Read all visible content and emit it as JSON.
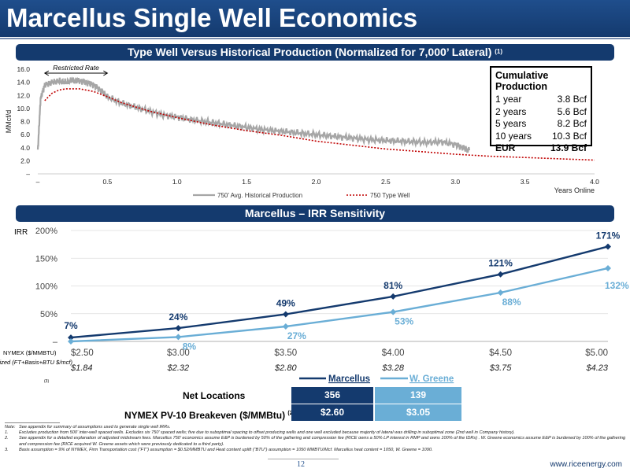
{
  "page": {
    "title": "Marcellus Single Well Economics",
    "section1_title": "Type Well Versus Historical Production (Normalized for 7,000’ Lateral)",
    "section1_sup": "(1)",
    "section2_title": "Marcellus – IRR Sensitivity",
    "page_number": "12",
    "website": "www.riceenergy.com"
  },
  "cumulative_box": {
    "title": "Cumulative Production",
    "rows": [
      {
        "label": "1 year",
        "value": "3.8 Bcf",
        "bold": false
      },
      {
        "label": "2 years",
        "value": "5.6 Bcf",
        "bold": false
      },
      {
        "label": "5 years",
        "value": "8.2 Bcf",
        "bold": false
      },
      {
        "label": "10 years",
        "value": "10.3 Bcf",
        "bold": false
      },
      {
        "label": "EUR",
        "value": "13.9 Bcf",
        "bold": true
      }
    ]
  },
  "net_table": {
    "row1_label": "Net Locations",
    "row1_values": [
      "356",
      "139"
    ],
    "row2_label": "NYMEX PV-10 Breakeven ($/MMBtu)",
    "row2_sup": "(2)",
    "row2_values": [
      "$2.60",
      "$3.05"
    ],
    "colors": [
      "#143a6e",
      "#6aaed6"
    ]
  },
  "footnotes": [
    {
      "n": "Note:",
      "text": "See appendix for summary of assumptions used to generate single well IRRs."
    },
    {
      "n": "1.",
      "text": "Excludes production from 500’ inter-well spaced wells. Excludes six 750’ spaced wells; five due to suboptimal spacing to offset producing wells and one well excluded because majority of lateral was drilling in suboptimal zone (2nd well in Company history)."
    },
    {
      "n": "2.",
      "text": "See appendix for a detailed explanation of adjusted midstream fees. Marcellus 750’ economics assume E&P is burdened by 50% of the gathering and compression fee (RICE owns a 50% LP interest in RMP and owns 100% of the IDRs) . W. Greene economics assume E&P is burdened by 100% of the gathering and compression fee (RICE acquired W. Greene assets which were previously dedicated to a third party)."
    },
    {
      "n": "3.",
      "text": "Basis assumption = 9% of NYMEX, Firm Transportation cost (“FT”) assumption = $0.52/MMBTU and Heat content uplift (“BTU”) assumption = 1050 MMBTU/Mcf. Marcellus heat content = 1050, W. Greene = 1090."
    }
  ],
  "chart_data": [
    {
      "type": "line",
      "title": "",
      "ylabel": "MMcf/d",
      "xlabel": "Years Online",
      "xlim": [
        0,
        4.0
      ],
      "ylim": [
        0,
        16.0
      ],
      "x_ticks": [
        "–",
        "0.5",
        "1.0",
        "1.5",
        "2.0",
        "2.5",
        "3.0",
        "3.5",
        "4.0"
      ],
      "y_ticks": [
        "–",
        "2.0",
        "4.0",
        "6.0",
        "8.0",
        "10.0",
        "12.0",
        "14.0",
        "16.0"
      ],
      "annotation": "Restricted Rate",
      "annotation_range": [
        0.05,
        0.5
      ],
      "legend_position": "bottom",
      "series": [
        {
          "name": "750’ Avg. Historical Production",
          "color": "#a6a6a6",
          "x": [
            0.0,
            0.02,
            0.05,
            0.1,
            0.15,
            0.2,
            0.25,
            0.3,
            0.35,
            0.4,
            0.45,
            0.5,
            0.6,
            0.7,
            0.8,
            0.9,
            1.0,
            1.1,
            1.2,
            1.3,
            1.4,
            1.5,
            1.6,
            1.7,
            1.8,
            1.9,
            2.0,
            2.1,
            2.2,
            2.3,
            2.4,
            2.5,
            2.6,
            2.7,
            2.8,
            2.9,
            3.0,
            3.05,
            3.1
          ],
          "y": [
            3.5,
            11.5,
            13.6,
            14.0,
            14.2,
            14.0,
            14.3,
            14.2,
            14.0,
            13.6,
            12.8,
            11.8,
            10.8,
            10.2,
            9.6,
            9.0,
            8.7,
            8.3,
            8.0,
            7.7,
            7.4,
            7.1,
            6.8,
            6.6,
            6.4,
            6.2,
            6.0,
            5.8,
            5.6,
            5.4,
            5.2,
            5.1,
            5.0,
            4.9,
            4.8,
            4.9,
            4.5,
            4.0,
            3.6
          ]
        },
        {
          "name": "750 Type Well",
          "color": "#c00000",
          "x": [
            0.05,
            0.1,
            0.15,
            0.2,
            0.3,
            0.4,
            0.5,
            0.6,
            0.8,
            1.0,
            1.25,
            1.5,
            1.75,
            2.0,
            2.25,
            2.5,
            2.75,
            3.0,
            3.25,
            3.5,
            3.75,
            4.0
          ],
          "y": [
            11.2,
            12.3,
            12.8,
            13.0,
            13.0,
            12.6,
            11.8,
            10.9,
            9.6,
            8.6,
            7.5,
            6.6,
            5.9,
            5.0,
            4.4,
            3.8,
            3.4,
            3.0,
            2.7,
            2.5,
            2.3,
            2.1
          ]
        }
      ]
    },
    {
      "type": "line",
      "title": "",
      "ylabel": "IRR",
      "ylim": [
        0,
        200
      ],
      "y_ticks": [
        "–",
        "50%",
        "100%",
        "150%",
        "200%"
      ],
      "categories": [
        "$2.50",
        "$3.00",
        "$3.50",
        "$4.00",
        "$4.50",
        "$5.00"
      ],
      "category_axis_label": "NYMEX ($/MMBTU)",
      "realized_label": "Realized (FT+Basis+BTU $/mcf)",
      "realized_label_sup": "(3)",
      "realized_values": [
        "$1.84",
        "$2.32",
        "$2.80",
        "$3.28",
        "$3.75",
        "$4.23"
      ],
      "legend_position": "bottom-center",
      "series": [
        {
          "name": "Marcellus",
          "color": "#143a6e",
          "values": [
            7,
            24,
            49,
            81,
            121,
            171
          ],
          "labels": [
            "7%",
            "24%",
            "49%",
            "81%",
            "121%",
            "171%"
          ]
        },
        {
          "name": "W. Greene",
          "color": "#6aaed6",
          "values": [
            0,
            8,
            27,
            53,
            88,
            132
          ],
          "labels": [
            "",
            "8%",
            "27%",
            "53%",
            "88%",
            "132%"
          ]
        }
      ]
    }
  ]
}
